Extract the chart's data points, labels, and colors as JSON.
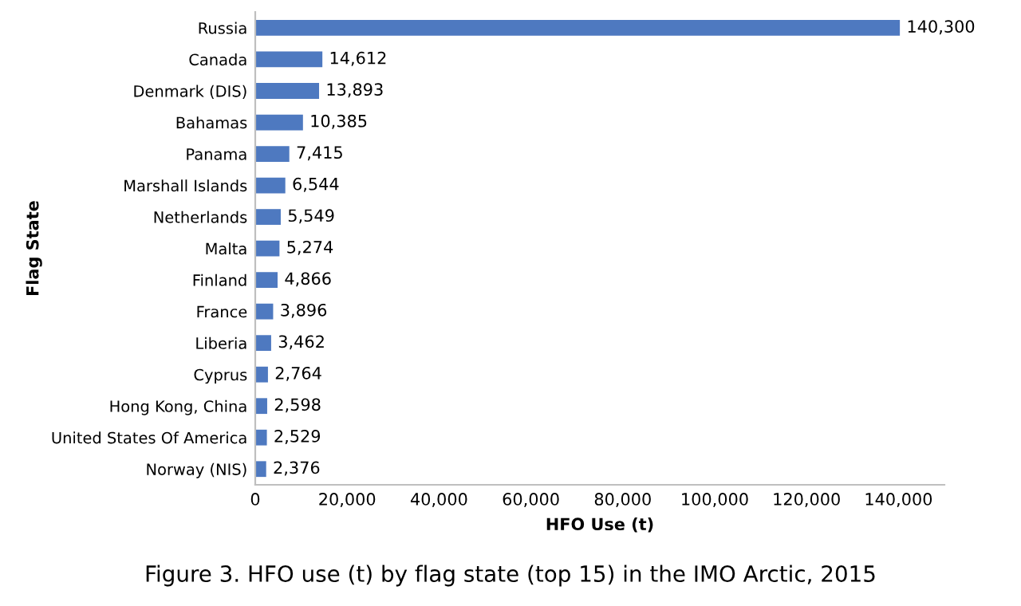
{
  "chart_data": {
    "type": "bar",
    "orientation": "horizontal",
    "categories": [
      "Russia",
      "Canada",
      "Denmark (DIS)",
      "Bahamas",
      "Panama",
      "Marshall Islands",
      "Netherlands",
      "Malta",
      "Finland",
      "France",
      "Liberia",
      "Cyprus",
      "Hong Kong, China",
      "United States Of America",
      "Norway (NIS)"
    ],
    "values": [
      140300,
      14612,
      13893,
      10385,
      7415,
      6544,
      5549,
      5274,
      4866,
      3896,
      3462,
      2764,
      2598,
      2529,
      2376
    ],
    "value_labels": [
      "140,300",
      "14,612",
      "13,893",
      "10,385",
      "7,415",
      "6,544",
      "5,549",
      "5,274",
      "4,866",
      "3,896",
      "3,462",
      "2,764",
      "2,598",
      "2,529",
      "2,376"
    ],
    "color": "#4e79c0",
    "xlim": [
      0,
      150000
    ],
    "xticks": [
      {
        "value": 0,
        "label": "0"
      },
      {
        "value": 20000,
        "label": "20,000"
      },
      {
        "value": 40000,
        "label": "40,000"
      },
      {
        "value": 60000,
        "label": "60,000"
      },
      {
        "value": 80000,
        "label": "80,000"
      },
      {
        "value": 100000,
        "label": "100,000"
      },
      {
        "value": 120000,
        "label": "120,000"
      },
      {
        "value": 140000,
        "label": "140,000"
      }
    ],
    "xlabel": "HFO Use (t)",
    "ylabel": "Flag State",
    "annotations": [
      "Figure 3. HFO use (t) by flag state (top 15) in the IMO Arctic, 2015"
    ],
    "grid": false,
    "legend": false
  }
}
